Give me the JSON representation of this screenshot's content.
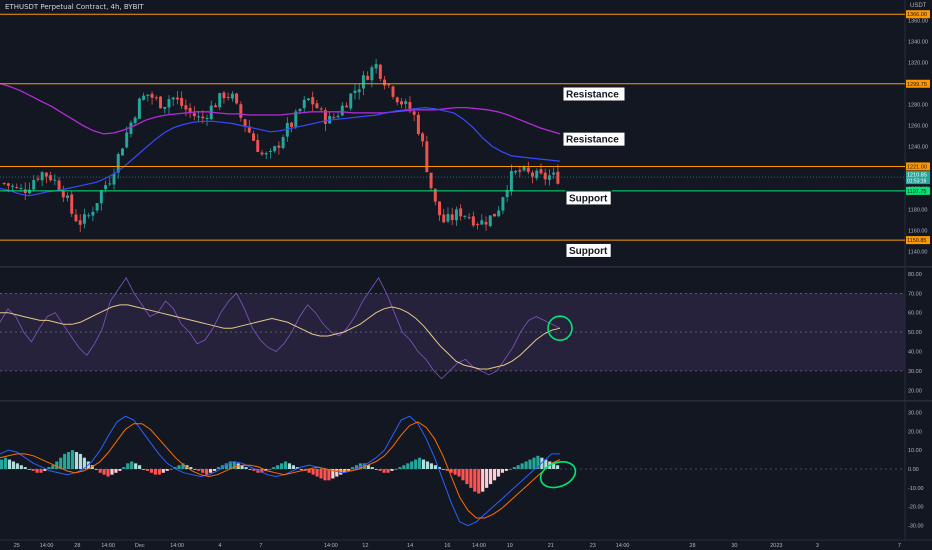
{
  "title": "ETHUSDT Perpetual Contract, 4h, BYBIT",
  "currency": "USDT",
  "colors": {
    "background": "#131722",
    "up": "#26a69a",
    "down": "#ef5350",
    "ma_purple": "#b52ad9",
    "ma_blue": "#3949ff",
    "level_orange": "#ff9800",
    "level_green": "#00e676",
    "rsi_band": "#2a2540",
    "rsi_line": "#7e57c2",
    "rsi_ma": "#e6c78a",
    "macd_line": "#2962ff",
    "signal_line": "#ff6d00",
    "annotation": "#00e676"
  },
  "chart_data": [
    {
      "type": "candlestick",
      "panel": "price",
      "ylim": [
        1130,
        1370
      ],
      "y_ticks": [
        "1360.00",
        "1340.00",
        "1320.00",
        "1300.00",
        "1280.00",
        "1260.00",
        "1240.00",
        "1220.00",
        "1200.00",
        "1180.00",
        "1160.00",
        "1140.00"
      ],
      "close_path": [
        1205,
        1202,
        1198,
        1200,
        1210,
        1215,
        1212,
        1205,
        1195,
        1175,
        1168,
        1172,
        1185,
        1200,
        1210,
        1230,
        1250,
        1268,
        1285,
        1290,
        1284,
        1280,
        1288,
        1282,
        1275,
        1270,
        1265,
        1275,
        1282,
        1290,
        1288,
        1270,
        1258,
        1245,
        1232,
        1230,
        1240,
        1255,
        1262,
        1275,
        1285,
        1280,
        1268,
        1265,
        1272,
        1282,
        1292,
        1300,
        1310,
        1318,
        1305,
        1295,
        1285,
        1278,
        1270,
        1248,
        1210,
        1180,
        1168,
        1172,
        1178,
        1175,
        1170,
        1168,
        1172,
        1178,
        1200,
        1213,
        1216,
        1214,
        1212,
        1210,
        1212,
        1210
      ],
      "ma_purple": [
        1300,
        1297,
        1293,
        1288,
        1283,
        1278,
        1272,
        1266,
        1260,
        1255,
        1252,
        1253,
        1256,
        1260,
        1265,
        1268,
        1270,
        1271,
        1272,
        1273,
        1273,
        1272,
        1271,
        1271,
        1270,
        1270,
        1270,
        1270,
        1271,
        1272,
        1273,
        1273,
        1273,
        1273,
        1272,
        1272,
        1272,
        1272,
        1273,
        1274,
        1275,
        1275,
        1275,
        1276,
        1277,
        1277,
        1276,
        1275,
        1273,
        1270,
        1266,
        1262,
        1258,
        1255,
        1252
      ],
      "ma_blue": [
        1200,
        1198,
        1195,
        1193,
        1195,
        1197,
        1198,
        1200,
        1202,
        1204,
        1206,
        1210,
        1215,
        1222,
        1230,
        1238,
        1246,
        1253,
        1258,
        1261,
        1263,
        1264,
        1264,
        1263,
        1262,
        1260,
        1258,
        1256,
        1254,
        1255,
        1257,
        1259,
        1261,
        1263,
        1265,
        1266,
        1267,
        1268,
        1269,
        1270,
        1272,
        1274,
        1275,
        1276,
        1277,
        1276,
        1274,
        1272,
        1266,
        1258,
        1248,
        1240,
        1235,
        1231,
        1230,
        1229,
        1228,
        1227,
        1226
      ],
      "levels": [
        {
          "value": 1366.0,
          "color": "#ff9800",
          "label": "1366.00"
        },
        {
          "value": 1299.75,
          "color": "#ff9800",
          "label": "1299.75"
        },
        {
          "value": 1221.0,
          "color": "#ff9800",
          "label": "1221.00"
        },
        {
          "value": 1197.75,
          "color": "#00e676",
          "label": "1197.75"
        },
        {
          "value": 1150.85,
          "color": "#ff9800",
          "label": "1150.85"
        }
      ],
      "current_price": {
        "value": 1210.85,
        "label": "1210.85",
        "countdown": "01:53:16"
      },
      "annotations": [
        {
          "text": "Resistance",
          "value": 1290
        },
        {
          "text": "Resistance",
          "value": 1247
        },
        {
          "text": "Support",
          "value": 1191
        },
        {
          "text": "Support",
          "value": 1141
        }
      ]
    },
    {
      "type": "line",
      "panel": "rsi",
      "ylim": [
        15,
        82
      ],
      "y_ticks": [
        "80.00",
        "70.00",
        "60.00",
        "50.00",
        "40.00",
        "30.00",
        "20.00"
      ],
      "band": [
        30,
        70
      ],
      "midline": 50,
      "rsi": [
        55,
        62,
        58,
        50,
        45,
        52,
        58,
        60,
        54,
        48,
        42,
        38,
        44,
        52,
        66,
        72,
        78,
        70,
        64,
        58,
        60,
        66,
        62,
        54,
        50,
        44,
        46,
        52,
        60,
        66,
        70,
        62,
        52,
        46,
        42,
        40,
        44,
        50,
        58,
        64,
        60,
        54,
        50,
        48,
        52,
        58,
        66,
        72,
        78,
        70,
        60,
        50,
        46,
        40,
        36,
        30,
        26,
        30,
        34,
        36,
        32,
        30,
        28,
        30,
        36,
        42,
        50,
        56,
        58,
        56,
        54,
        52
      ],
      "rsi_ma": [
        60,
        60,
        59,
        58,
        57,
        56,
        56,
        55,
        54,
        54,
        55,
        57,
        59,
        61,
        63,
        64,
        64,
        63,
        62,
        61,
        60,
        59,
        58,
        57,
        56,
        55,
        54,
        53,
        52,
        52,
        53,
        54,
        55,
        56,
        57,
        56,
        55,
        53,
        51,
        49,
        48,
        48,
        49,
        50,
        52,
        54,
        57,
        60,
        62,
        63,
        62,
        60,
        57,
        53,
        48,
        43,
        39,
        35,
        33,
        32,
        31,
        31,
        32,
        33,
        35,
        38,
        42,
        46,
        49,
        51,
        52
      ],
      "circle_annotation": {
        "index": 68,
        "value": 52
      }
    },
    {
      "type": "bar",
      "panel": "macd",
      "ylim": [
        -35,
        35
      ],
      "y_ticks": [
        "30.00",
        "20.00",
        "10.00",
        "0.00",
        "-10.00",
        "-20.00",
        "-30.00"
      ],
      "histogram": [
        5,
        6,
        5,
        4,
        3,
        2,
        1,
        0,
        -1,
        -2,
        -2,
        -1,
        1,
        2,
        4,
        6,
        8,
        9,
        10,
        9,
        8,
        6,
        4,
        2,
        0,
        -2,
        -3,
        -4,
        -3,
        -2,
        -1,
        1,
        3,
        4,
        3,
        2,
        0,
        -1,
        -2,
        -3,
        -3,
        -2,
        -1,
        0,
        1,
        2,
        3,
        2,
        1,
        0,
        -1,
        -2,
        -3,
        -2,
        -1,
        1,
        2,
        3,
        4,
        4,
        3,
        2,
        1,
        0,
        -1,
        -2,
        -2,
        -1,
        0,
        1,
        2,
        3,
        4,
        3,
        2,
        1,
        0,
        -1,
        -2,
        -3,
        -4,
        -5,
        -6,
        -6,
        -5,
        -4,
        -3,
        -2,
        -1,
        1,
        2,
        3,
        3,
        2,
        1,
        0,
        -1,
        -2,
        -2,
        -1,
        0,
        1,
        2,
        3,
        4,
        5,
        6,
        5,
        4,
        3,
        2,
        1,
        0,
        -1,
        -2,
        -3,
        -4,
        -6,
        -8,
        -10,
        -12,
        -13,
        -12,
        -10,
        -8,
        -6,
        -4,
        -2,
        -1,
        0,
        1,
        2,
        3,
        4,
        5,
        6,
        7,
        6,
        5,
        4,
        3,
        2
      ],
      "macd": [
        8,
        10,
        9,
        6,
        3,
        1,
        -1,
        -2,
        -3,
        -2,
        0,
        4,
        10,
        18,
        25,
        28,
        26,
        20,
        14,
        8,
        3,
        0,
        -2,
        -3,
        -4,
        -3,
        -1,
        2,
        4,
        3,
        1,
        -1,
        -3,
        -4,
        -3,
        -1,
        1,
        2,
        1,
        0,
        -1,
        -2,
        -1,
        1,
        3,
        6,
        10,
        18,
        26,
        28,
        24,
        16,
        6,
        -6,
        -18,
        -28,
        -30,
        -28,
        -24,
        -20,
        -16,
        -12,
        -8,
        -4,
        0,
        4,
        8,
        8
      ],
      "signal": [
        6,
        7,
        8,
        8,
        7,
        5,
        3,
        1,
        -1,
        -2,
        -1,
        1,
        4,
        9,
        15,
        21,
        24,
        24,
        21,
        16,
        11,
        6,
        2,
        -1,
        -3,
        -4,
        -3,
        -1,
        1,
        2,
        2,
        1,
        -1,
        -2,
        -3,
        -2,
        -1,
        0,
        1,
        0,
        -1,
        -1,
        -1,
        0,
        2,
        4,
        7,
        12,
        18,
        23,
        25,
        22,
        16,
        7,
        -4,
        -15,
        -22,
        -26,
        -26,
        -24,
        -21,
        -17,
        -13,
        -9,
        -5,
        -1,
        3,
        5
      ],
      "circle_annotation": {
        "index": 68,
        "value": -3
      }
    }
  ],
  "x_axis": {
    "ticks": [
      {
        "label": "25",
        "pos": 0.018
      },
      {
        "label": "14:00",
        "pos": 0.05
      },
      {
        "label": "28",
        "pos": 0.083
      },
      {
        "label": "14:00",
        "pos": 0.116
      },
      {
        "label": "Dec",
        "pos": 0.15
      },
      {
        "label": "14:00",
        "pos": 0.19
      },
      {
        "label": "4",
        "pos": 0.236
      },
      {
        "label": "7",
        "pos": 0.28
      },
      {
        "label": "14:00",
        "pos": 0.355
      },
      {
        "label": "12",
        "pos": 0.392
      },
      {
        "label": "14",
        "pos": 0.44
      },
      {
        "label": "16",
        "pos": 0.48
      },
      {
        "label": "14:00",
        "pos": 0.514
      },
      {
        "label": "19",
        "pos": 0.547
      },
      {
        "label": "21",
        "pos": 0.591
      },
      {
        "label": "23",
        "pos": 0.636
      },
      {
        "label": "14:00",
        "pos": 0.668
      },
      {
        "label": "28",
        "pos": 0.743
      },
      {
        "label": "30",
        "pos": 0.788
      },
      {
        "label": "2023",
        "pos": 0.833
      },
      {
        "label": "3",
        "pos": 0.877
      },
      {
        "label": "7",
        "pos": 0.965
      }
    ]
  }
}
